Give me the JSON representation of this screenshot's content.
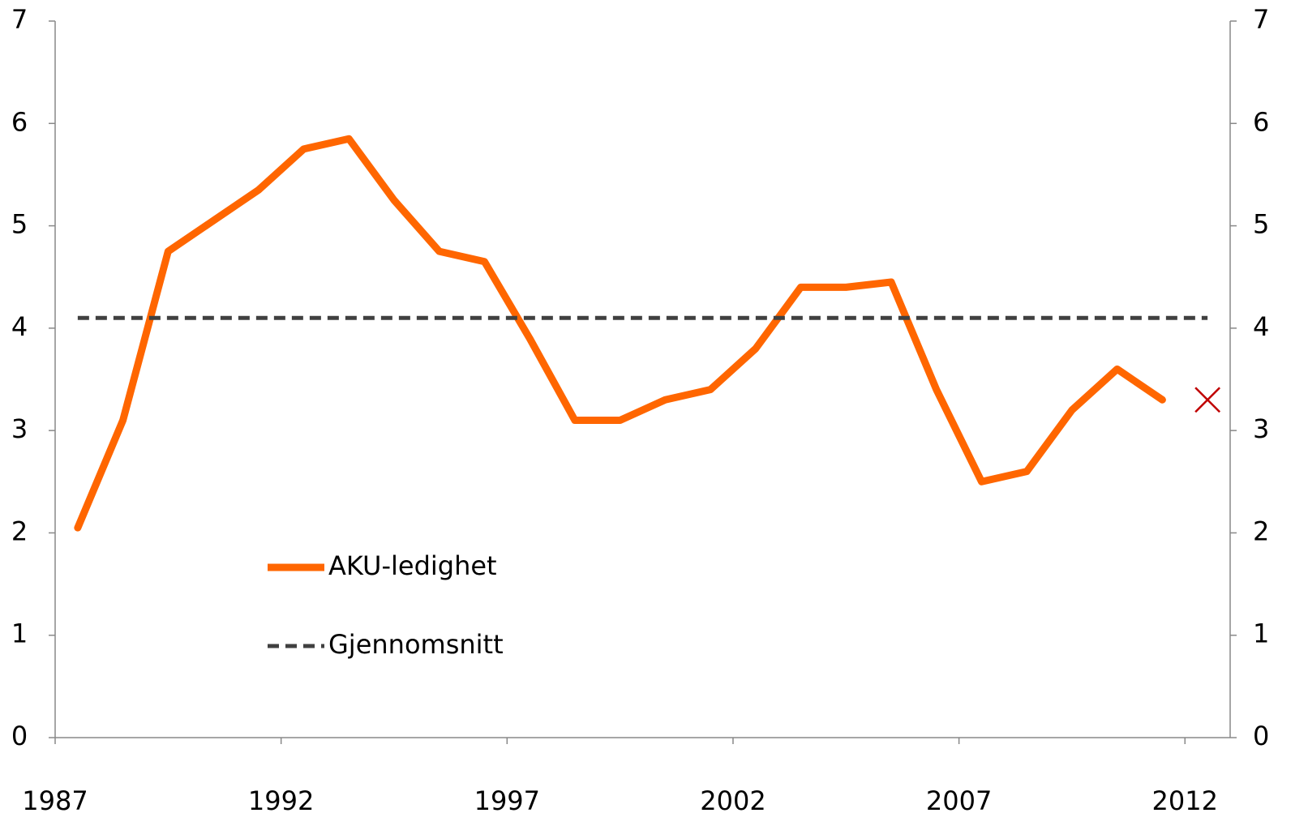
{
  "chart_data": {
    "type": "line",
    "xlim": [
      1987,
      2013
    ],
    "xticks": [
      1987,
      1992,
      1997,
      2002,
      2007,
      2012
    ],
    "ylim": [
      0,
      7
    ],
    "yticks": [
      0,
      1,
      2,
      3,
      4,
      5,
      6,
      7
    ],
    "y2lim": [
      0,
      7
    ],
    "y2ticks": [
      0,
      1,
      2,
      3,
      4,
      5,
      6,
      7
    ],
    "legend": "lower-left",
    "series": [
      {
        "name": "AKU-ledighet",
        "color": "#ff6600",
        "style": "solid",
        "x": [
          1987.5,
          1988.5,
          1989.5,
          1990.5,
          1991.5,
          1992.5,
          1993.5,
          1994.5,
          1995.5,
          1996.5,
          1997.5,
          1998.5,
          1999.5,
          2000.5,
          2001.5,
          2002.5,
          2003.5,
          2004.5,
          2005.5,
          2006.5,
          2007.5,
          2008.5,
          2009.5,
          2010.5,
          2011.5
        ],
        "values": [
          2.05,
          3.1,
          4.75,
          5.05,
          5.35,
          5.75,
          5.85,
          5.25,
          4.75,
          4.65,
          3.9,
          3.1,
          3.1,
          3.3,
          3.4,
          3.8,
          4.4,
          4.4,
          4.45,
          3.4,
          2.5,
          2.6,
          3.2,
          3.6,
          3.3
        ]
      },
      {
        "name": "Gjennomsnitt",
        "color": "#404040",
        "style": "dashed",
        "x": [
          1987.5,
          2012.5
        ],
        "values": [
          4.1,
          4.1
        ]
      }
    ],
    "markers": [
      {
        "x": 2012.5,
        "value": 3.3,
        "color": "#c00000"
      }
    ]
  }
}
